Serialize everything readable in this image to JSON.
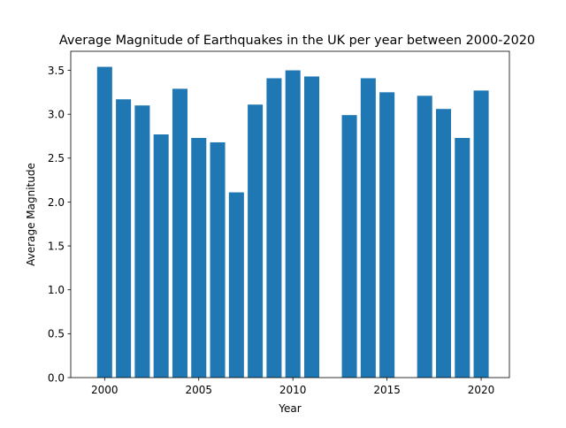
{
  "chart_data": {
    "type": "bar",
    "title": "Average Magnitude of Earthquakes in the UK per year between 2000-2020",
    "xlabel": "Year",
    "ylabel": "Average Magnitude",
    "x": [
      2000,
      2001,
      2002,
      2003,
      2004,
      2005,
      2006,
      2007,
      2008,
      2009,
      2010,
      2011,
      2013,
      2014,
      2015,
      2017,
      2018,
      2019,
      2020
    ],
    "values": [
      3.54,
      3.17,
      3.1,
      2.77,
      3.29,
      2.73,
      2.68,
      2.11,
      3.11,
      3.41,
      3.5,
      3.43,
      2.99,
      3.41,
      3.25,
      3.21,
      3.06,
      2.73,
      3.27
    ],
    "xlim": [
      1998.2,
      2021.5
    ],
    "ylim": [
      0,
      3.717
    ],
    "xticks": [
      "2000",
      "2005",
      "2010",
      "2015",
      "2020"
    ],
    "yticks": [
      "0.0",
      "0.5",
      "1.0",
      "1.5",
      "2.0",
      "2.5",
      "3.0",
      "3.5"
    ],
    "bar_color": "#1f77b4",
    "grid": false,
    "legend": "none"
  }
}
